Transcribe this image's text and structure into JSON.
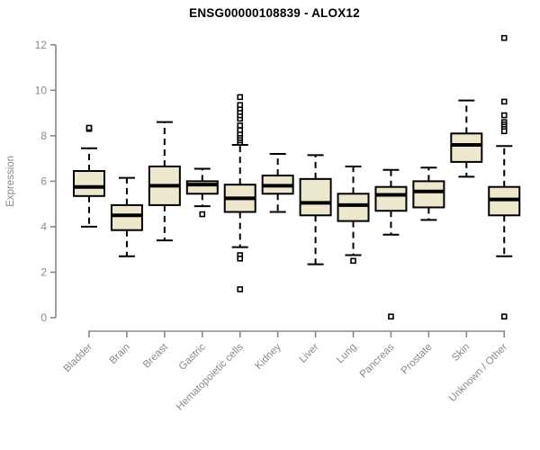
{
  "page": {
    "background": "#ffffff"
  },
  "chart_data": {
    "type": "boxplot",
    "title": "ENSG00000108839 - ALOX12",
    "ylabel": "Expression",
    "xlabel": "",
    "ylim": [
      0,
      12
    ],
    "yticks": [
      "0",
      "2",
      "4",
      "6",
      "8",
      "10",
      "12"
    ],
    "grid": false,
    "legend": false,
    "colors": {
      "box_fill": "#EDE8CD",
      "box_stroke": "#000000",
      "median": "#000000",
      "whisker": "#000000",
      "axis": "#888888",
      "axis_text": "#8a8a8a",
      "title_text": "#000000"
    },
    "categories": [
      "Bladder",
      "Brain",
      "Breast",
      "Gastric",
      "Hematopoietic cells",
      "Kidney",
      "Liver",
      "Lung",
      "Pancreas",
      "Prostate",
      "Skin",
      "Unknown / Other"
    ],
    "boxes": [
      {
        "label": "Bladder",
        "whisker_low": 4.0,
        "q1": 5.35,
        "median": 5.75,
        "q3": 6.45,
        "whisker_high": 7.45,
        "outliers": [
          8.3,
          8.35
        ]
      },
      {
        "label": "Brain",
        "whisker_low": 2.7,
        "q1": 3.85,
        "median": 4.5,
        "q3": 4.95,
        "whisker_high": 6.15,
        "outliers": []
      },
      {
        "label": "Breast",
        "whisker_low": 3.4,
        "q1": 4.95,
        "median": 5.8,
        "q3": 6.65,
        "whisker_high": 8.6,
        "outliers": []
      },
      {
        "label": "Gastric",
        "whisker_low": 4.9,
        "q1": 5.45,
        "median": 5.85,
        "q3": 6.0,
        "whisker_high": 6.55,
        "outliers": [
          4.55
        ]
      },
      {
        "label": "Hematopoietic cells",
        "whisker_low": 3.1,
        "q1": 4.65,
        "median": 5.25,
        "q3": 5.85,
        "whisker_high": 7.6,
        "outliers": [
          7.7,
          7.8,
          7.9,
          8.0,
          8.1,
          8.25,
          8.45,
          8.75,
          8.9,
          9.05,
          9.2,
          9.35,
          9.7,
          2.75,
          2.6,
          1.25
        ]
      },
      {
        "label": "Kidney",
        "whisker_low": 4.65,
        "q1": 5.45,
        "median": 5.8,
        "q3": 6.25,
        "whisker_high": 7.2,
        "outliers": []
      },
      {
        "label": "Liver",
        "whisker_low": 2.35,
        "q1": 4.5,
        "median": 5.05,
        "q3": 6.1,
        "whisker_high": 7.15,
        "outliers": []
      },
      {
        "label": "Lung",
        "whisker_low": 2.75,
        "q1": 4.25,
        "median": 4.95,
        "q3": 5.45,
        "whisker_high": 6.65,
        "outliers": [
          2.5
        ]
      },
      {
        "label": "Pancreas",
        "whisker_low": 3.65,
        "q1": 4.7,
        "median": 5.4,
        "q3": 5.75,
        "whisker_high": 6.5,
        "outliers": [
          0.05
        ]
      },
      {
        "label": "Prostate",
        "whisker_low": 4.3,
        "q1": 4.85,
        "median": 5.55,
        "q3": 6.0,
        "whisker_high": 6.6,
        "outliers": []
      },
      {
        "label": "Skin",
        "whisker_low": 6.2,
        "q1": 6.85,
        "median": 7.6,
        "q3": 8.1,
        "whisker_high": 9.55,
        "outliers": []
      },
      {
        "label": "Unknown / Other",
        "whisker_low": 2.7,
        "q1": 4.5,
        "median": 5.2,
        "q3": 5.75,
        "whisker_high": 7.55,
        "outliers": [
          12.3,
          9.5,
          8.9,
          8.6,
          8.5,
          8.4,
          8.3,
          8.2,
          0.05
        ]
      }
    ]
  }
}
